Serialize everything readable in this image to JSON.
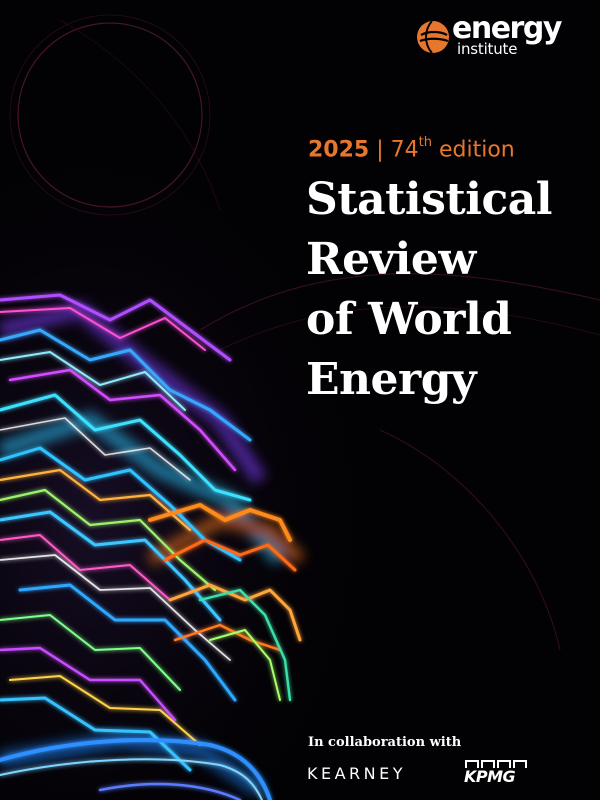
{
  "brand": {
    "logo_word1": "energy",
    "logo_word2": "institute",
    "accent_color": "#e8772e"
  },
  "edition": {
    "year": "2025",
    "separator": "|",
    "number": "74",
    "suffix": "th",
    "word": "edition"
  },
  "title": {
    "line1": "Statistical",
    "line2": "Review",
    "line3": "of World",
    "line4": "Energy"
  },
  "collaboration": {
    "label": "In collaboration with",
    "partner1": "KEARNEY",
    "partner2": "KPMG"
  },
  "icons": {
    "logo_mark": "energy-institute-logo-icon",
    "kpmg_boxes": "kpmg-logo-icon"
  }
}
